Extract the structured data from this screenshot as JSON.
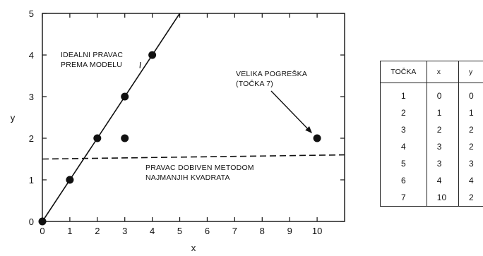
{
  "chart_data": {
    "type": "scatter",
    "xlabel": "x",
    "ylabel": "y",
    "xlim": [
      0,
      11
    ],
    "ylim": [
      0,
      5
    ],
    "x_ticks": [
      "0",
      "1",
      "2",
      "3",
      "4",
      "5",
      "6",
      "7",
      "8",
      "9",
      "10"
    ],
    "y_ticks": [
      "0",
      "1",
      "2",
      "3",
      "4",
      "5"
    ],
    "points": [
      {
        "x": 0,
        "y": 0
      },
      {
        "x": 1,
        "y": 1
      },
      {
        "x": 2,
        "y": 2
      },
      {
        "x": 3,
        "y": 2
      },
      {
        "x": 3,
        "y": 3
      },
      {
        "x": 4,
        "y": 4
      },
      {
        "x": 10,
        "y": 2
      }
    ],
    "lines": [
      {
        "style": "solid",
        "x": [
          0,
          5
        ],
        "y": [
          0,
          5
        ]
      },
      {
        "style": "dashed",
        "x": [
          0,
          11
        ],
        "y": [
          1.5,
          1.6
        ]
      }
    ],
    "annotations": {
      "ideal_line": [
        "IDEALNI PRAVAC",
        "PREMA MODELU"
      ],
      "outlier": [
        "VELIKA POGREŠKA",
        "(TOČKA 7)"
      ],
      "ls_line": [
        "PRAVAC DOBIVEN METODOM",
        "NAJMANJIH KVADRATA"
      ]
    },
    "grid": false,
    "legend": "none"
  },
  "table": {
    "headers": [
      "TOČKA",
      "x",
      "y"
    ],
    "rows": [
      [
        "1",
        "0",
        "0"
      ],
      [
        "2",
        "1",
        "1"
      ],
      [
        "3",
        "2",
        "2"
      ],
      [
        "4",
        "3",
        "2"
      ],
      [
        "5",
        "3",
        "3"
      ],
      [
        "6",
        "4",
        "4"
      ],
      [
        "7",
        "10",
        "2"
      ]
    ]
  }
}
